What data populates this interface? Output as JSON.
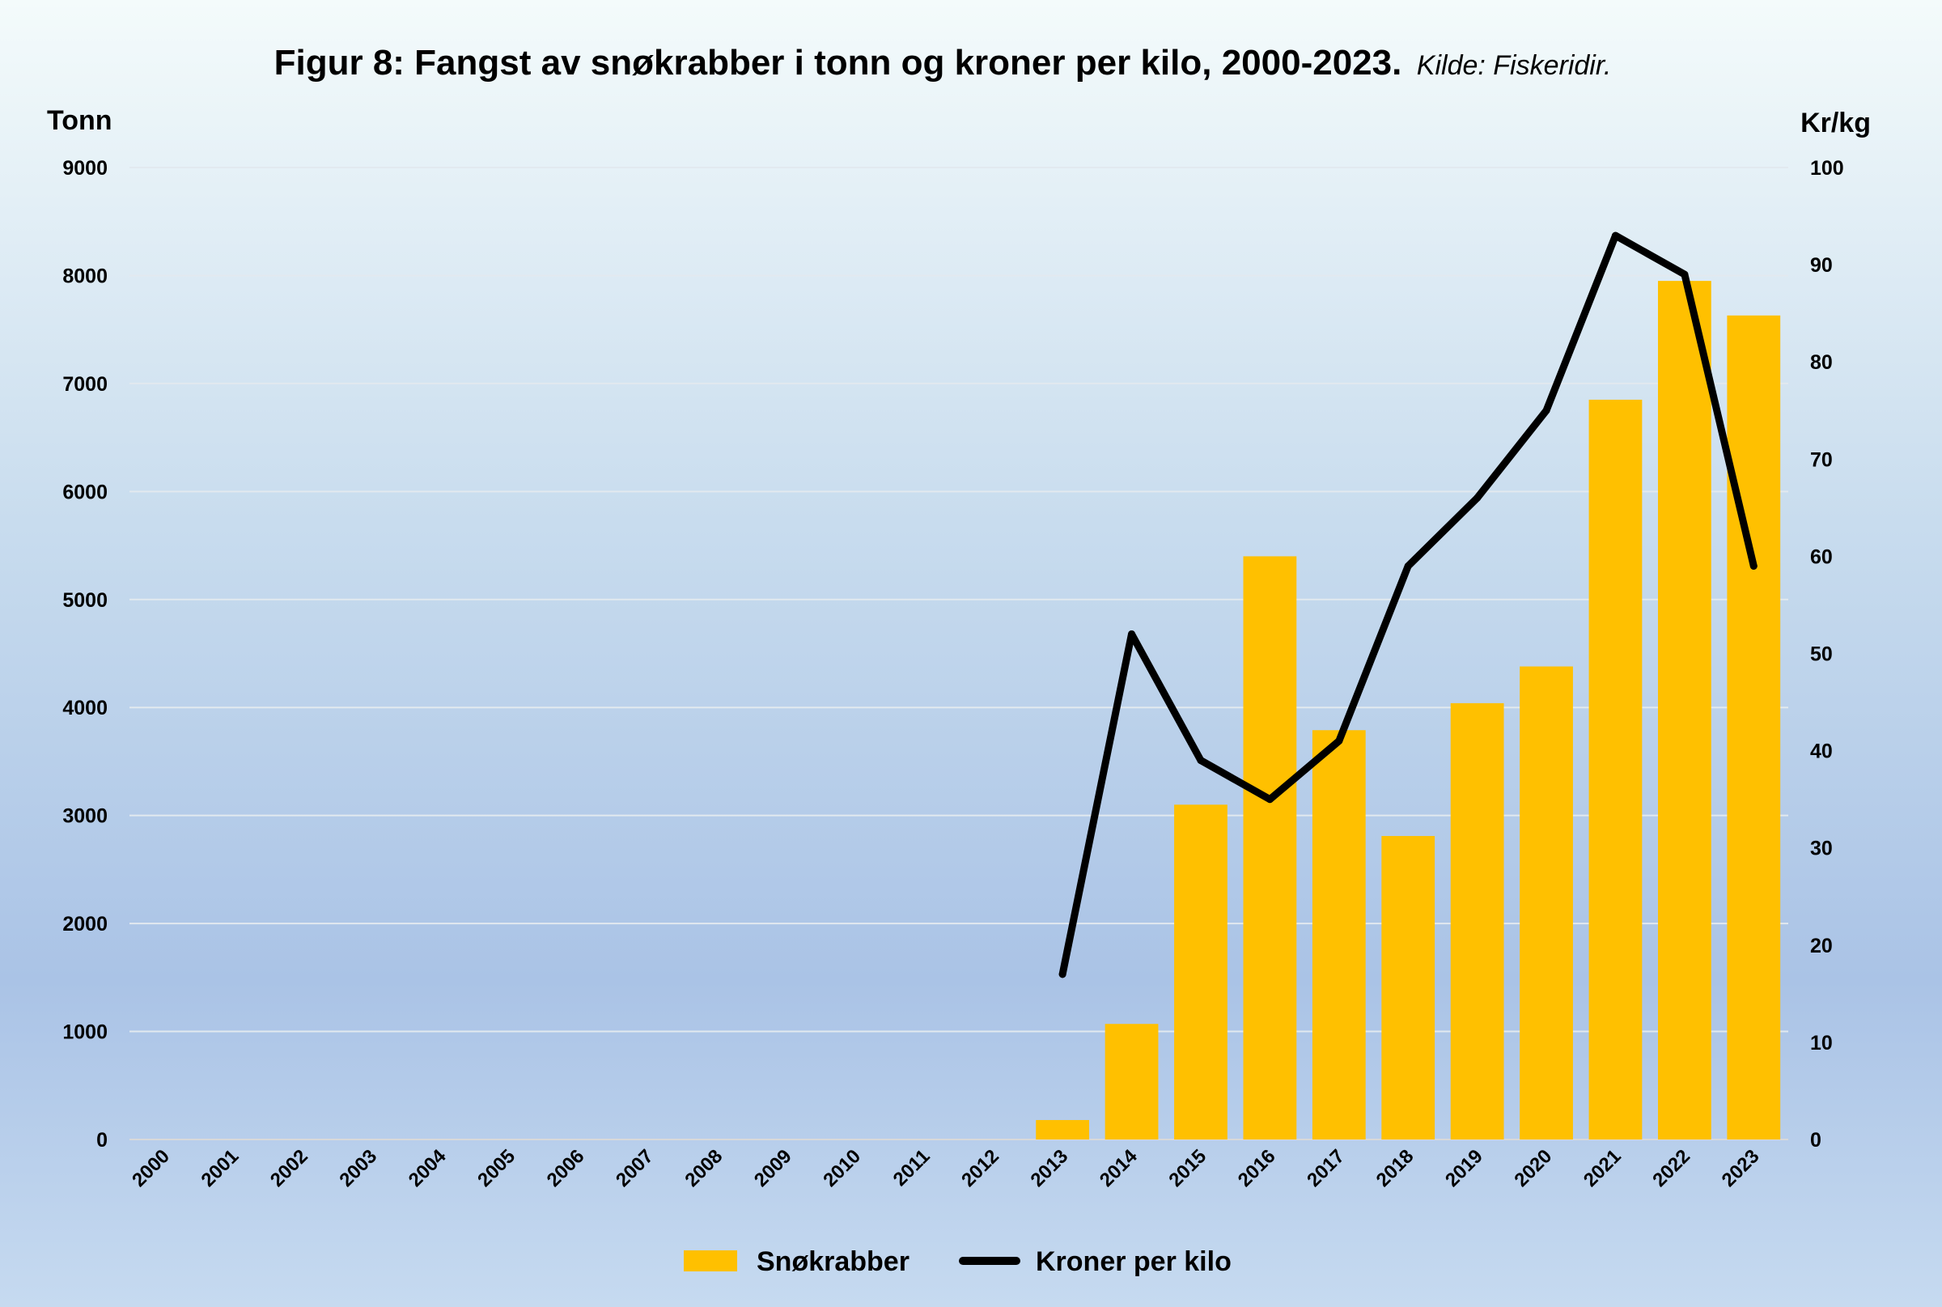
{
  "title": "Figur 8: Fangst av snøkrabber i tonn og kroner per kilo, 2000-2023.",
  "source": "Kilde: Fiskeridir.",
  "colors": {
    "bar": "#ffc000",
    "line": "#000000"
  },
  "chart_data": {
    "type": "bar",
    "categories": [
      "2000",
      "2001",
      "2002",
      "2003",
      "2004",
      "2005",
      "2006",
      "2007",
      "2008",
      "2009",
      "2010",
      "2011",
      "2012",
      "2013",
      "2014",
      "2015",
      "2016",
      "2017",
      "2018",
      "2019",
      "2020",
      "2021",
      "2022",
      "2023"
    ],
    "series": [
      {
        "name": "Snøkrabber",
        "type": "bar",
        "axis": "left",
        "values": [
          0,
          0,
          0,
          0,
          0,
          0,
          0,
          0,
          0,
          0,
          0,
          0,
          0,
          180,
          1070,
          3100,
          5400,
          3790,
          2810,
          4040,
          4380,
          6850,
          7950,
          7630
        ]
      },
      {
        "name": "Kroner per kilo",
        "type": "line",
        "axis": "right",
        "values": [
          null,
          null,
          null,
          null,
          null,
          null,
          null,
          null,
          null,
          null,
          null,
          null,
          null,
          17,
          52,
          39,
          35,
          41,
          59,
          66,
          75,
          93,
          89,
          59
        ]
      }
    ],
    "yleft": {
      "label": "Tonn",
      "lim": [
        0,
        9000
      ],
      "ticks": [
        0,
        1000,
        2000,
        3000,
        4000,
        5000,
        6000,
        7000,
        8000,
        9000
      ]
    },
    "yright": {
      "label": "Kr/kg",
      "lim": [
        0,
        100
      ],
      "ticks": [
        0,
        10,
        20,
        30,
        40,
        50,
        60,
        70,
        80,
        90,
        100
      ]
    },
    "grid": true,
    "legend": "bottom"
  }
}
